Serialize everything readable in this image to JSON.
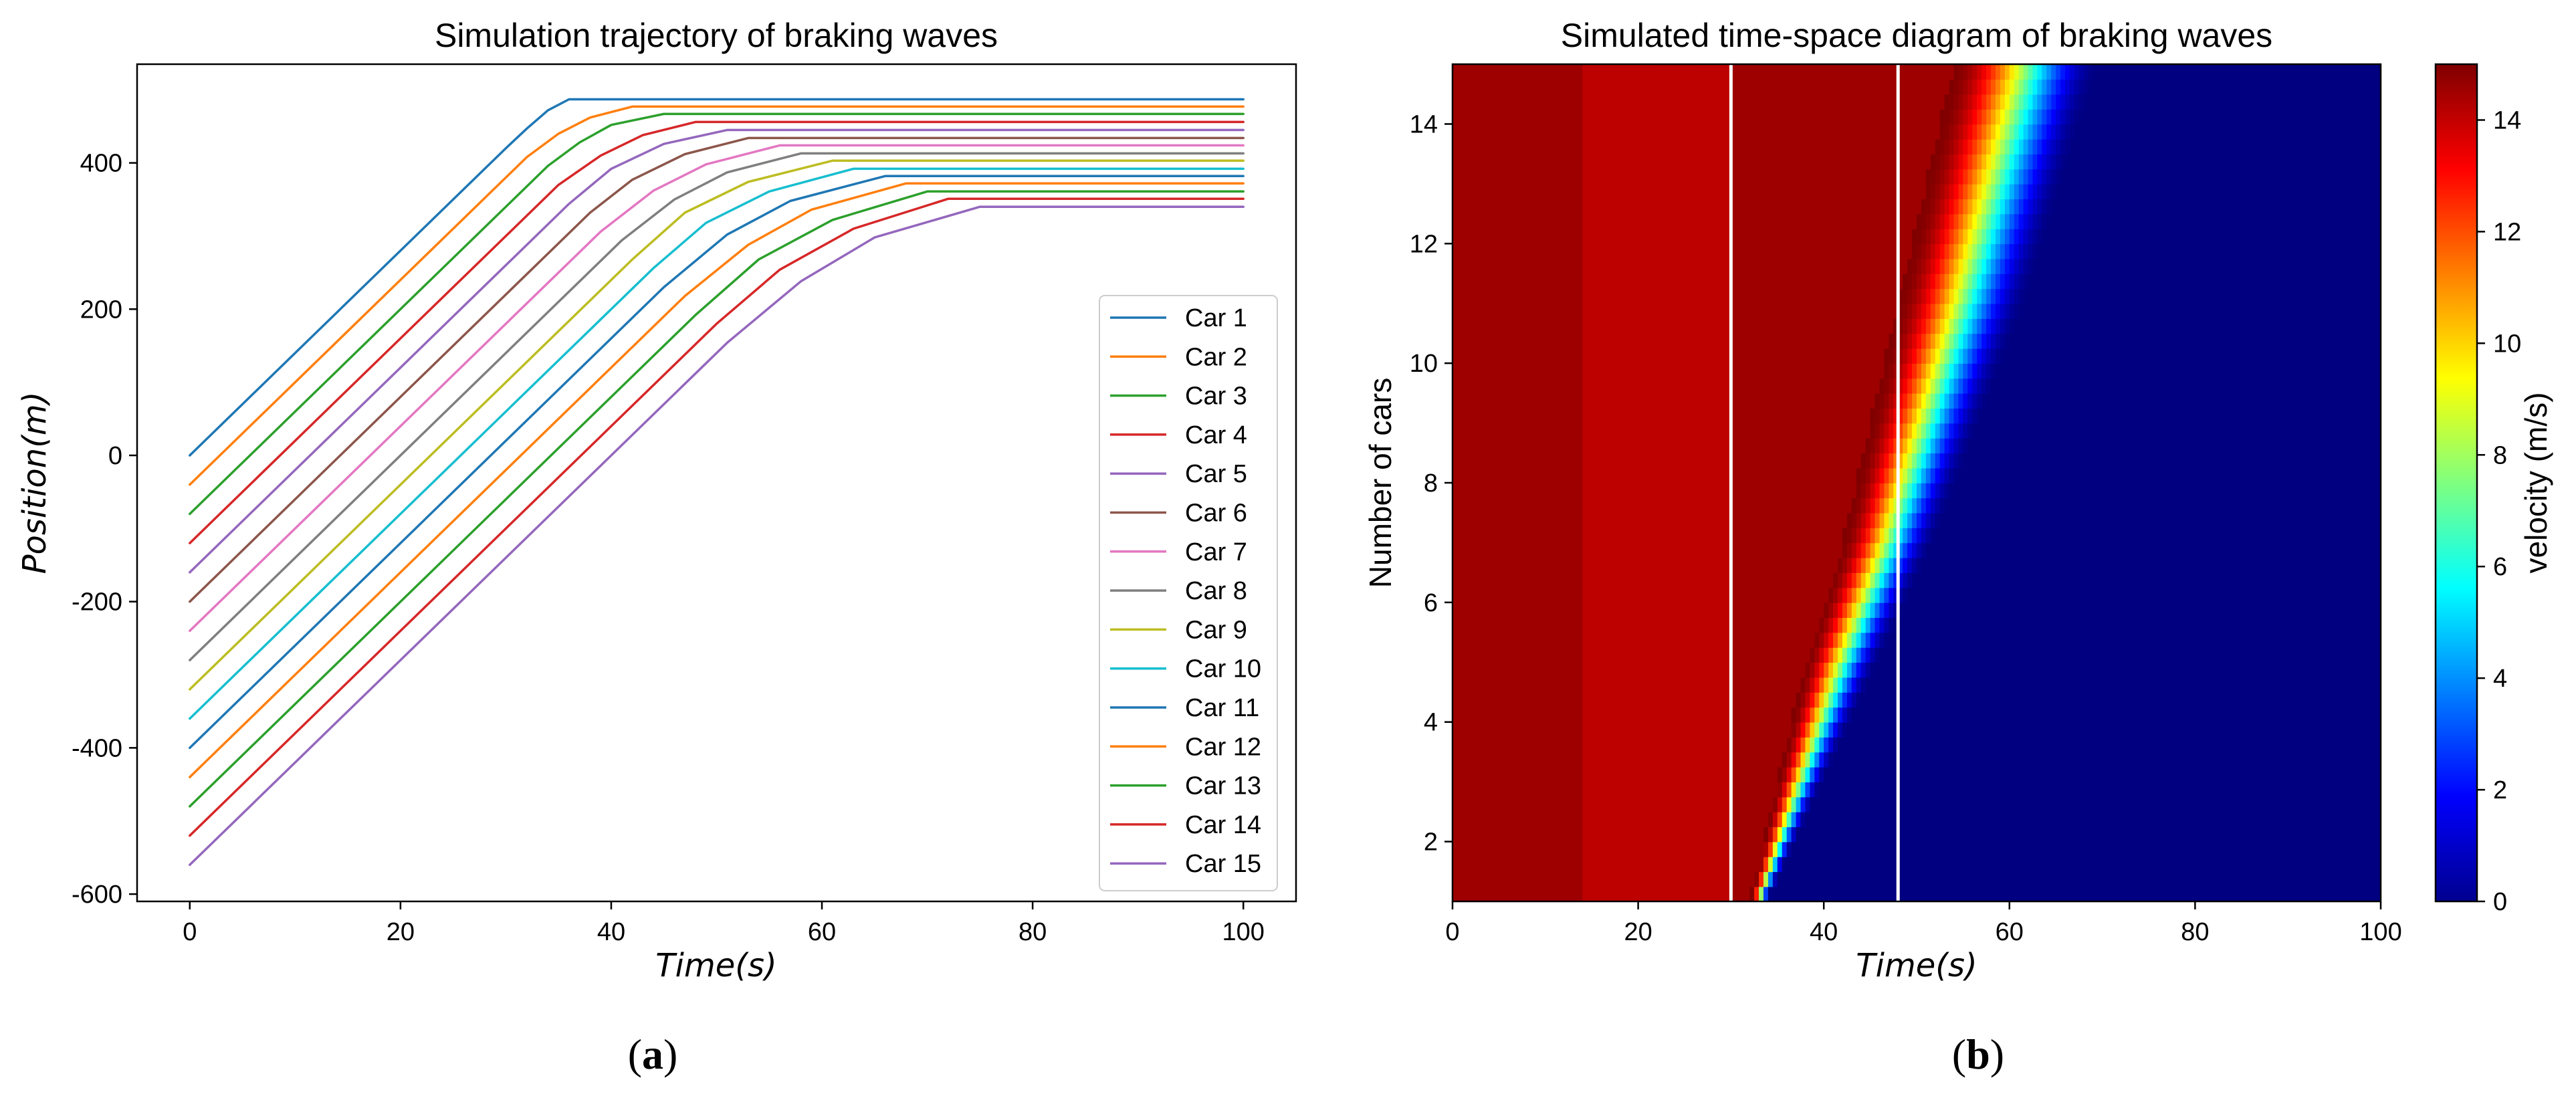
{
  "chart_data": [
    {
      "type": "line",
      "title": "Simulation trajectory of braking waves",
      "xlabel": "Time(s)",
      "ylabel": "Position(m)",
      "xlim": [
        -5,
        105
      ],
      "ylim": [
        -610,
        535
      ],
      "x_ticks": [
        0,
        20,
        40,
        60,
        80,
        100
      ],
      "y_ticks": [
        -600,
        -400,
        -200,
        0,
        200,
        400
      ],
      "y_tick_labels": [
        "-600",
        "-400",
        "-200",
        "0",
        "200",
        "400"
      ],
      "legend_position": "center-right",
      "panel_label": "(a)",
      "series": [
        {
          "name": "Car 1",
          "color": "#1f77b4",
          "x": [
            0,
            30,
            32,
            34,
            36,
            100
          ],
          "y": [
            0,
            420,
            447,
            472,
            487,
            487
          ]
        },
        {
          "name": "Car 2",
          "color": "#ff7f0e",
          "x": [
            0,
            32,
            35,
            38,
            42,
            100
          ],
          "y": [
            -40,
            408,
            440,
            462,
            477,
            477
          ]
        },
        {
          "name": "Car 3",
          "color": "#2ca02c",
          "x": [
            0,
            34,
            37,
            40,
            45,
            100
          ],
          "y": [
            -80,
            396,
            428,
            452,
            467,
            467
          ]
        },
        {
          "name": "Car 4",
          "color": "#d62728",
          "x": [
            0,
            35,
            39,
            43,
            48,
            100
          ],
          "y": [
            -120,
            370,
            410,
            438,
            456,
            456
          ]
        },
        {
          "name": "Car 5",
          "color": "#9467bd",
          "x": [
            0,
            36,
            40,
            45,
            51,
            100
          ],
          "y": [
            -160,
            344,
            392,
            426,
            445,
            445
          ]
        },
        {
          "name": "Car 6",
          "color": "#8c564b",
          "x": [
            0,
            38,
            42,
            47,
            53,
            100
          ],
          "y": [
            -200,
            332,
            377,
            412,
            434,
            434
          ]
        },
        {
          "name": "Car 7",
          "color": "#e377c2",
          "x": [
            0,
            39,
            44,
            49,
            56,
            100
          ],
          "y": [
            -240,
            306,
            362,
            398,
            424,
            424
          ]
        },
        {
          "name": "Car 8",
          "color": "#7f7f7f",
          "x": [
            0,
            41,
            46,
            51,
            58,
            100
          ],
          "y": [
            -280,
            294,
            350,
            387,
            413,
            413
          ]
        },
        {
          "name": "Car 9",
          "color": "#bcbd22",
          "x": [
            0,
            42,
            47,
            53,
            61,
            100
          ],
          "y": [
            -320,
            268,
            332,
            374,
            403,
            403
          ]
        },
        {
          "name": "Car 10",
          "color": "#17becf",
          "x": [
            0,
            44,
            49,
            55,
            63,
            100
          ],
          "y": [
            -360,
            256,
            318,
            361,
            392,
            392
          ]
        },
        {
          "name": "Car 11",
          "color": "#1f77b4",
          "x": [
            0,
            45,
            51,
            57,
            66,
            100
          ],
          "y": [
            -400,
            230,
            302,
            348,
            382,
            382
          ]
        },
        {
          "name": "Car 12",
          "color": "#ff7f0e",
          "x": [
            0,
            47,
            53,
            59,
            68,
            100
          ],
          "y": [
            -440,
            218,
            288,
            336,
            372,
            372
          ]
        },
        {
          "name": "Car 13",
          "color": "#2ca02c",
          "x": [
            0,
            48,
            54,
            61,
            70,
            100
          ],
          "y": [
            -480,
            192,
            268,
            322,
            361,
            361
          ]
        },
        {
          "name": "Car 14",
          "color": "#d62728",
          "x": [
            0,
            50,
            56,
            63,
            72,
            100
          ],
          "y": [
            -520,
            180,
            254,
            310,
            351,
            351
          ]
        },
        {
          "name": "Car 15",
          "color": "#9467bd",
          "x": [
            0,
            51,
            58,
            65,
            75,
            100
          ],
          "y": [
            -560,
            154,
            238,
            298,
            340,
            340
          ]
        }
      ]
    },
    {
      "type": "heatmap",
      "title": "Simulated time-space diagram of braking waves",
      "xlabel": "Time(s)",
      "ylabel": "Number of cars",
      "xlim": [
        0,
        100
      ],
      "ylim": [
        1,
        15
      ],
      "x_ticks": [
        0,
        20,
        40,
        60,
        80,
        100
      ],
      "y_ticks": [
        2,
        4,
        6,
        8,
        10,
        12,
        14
      ],
      "colorbar_label": "velocity (m/s)",
      "colorbar_range": [
        0,
        15
      ],
      "colorbar_ticks": [
        0,
        2,
        4,
        6,
        8,
        10,
        12,
        14
      ],
      "colormap": "jet",
      "free_flow_velocity": 15,
      "braking_wave": {
        "cars": [
          1,
          3,
          5,
          7,
          9,
          11,
          13,
          15
        ],
        "onset_time": [
          32,
          35,
          38,
          42,
          45,
          48,
          51,
          54
        ],
        "stop_time": [
          34,
          40,
          46,
          52,
          57,
          62,
          66,
          70
        ]
      },
      "vertical_lines": [
        30,
        48
      ],
      "panel_label": "(b)"
    }
  ]
}
